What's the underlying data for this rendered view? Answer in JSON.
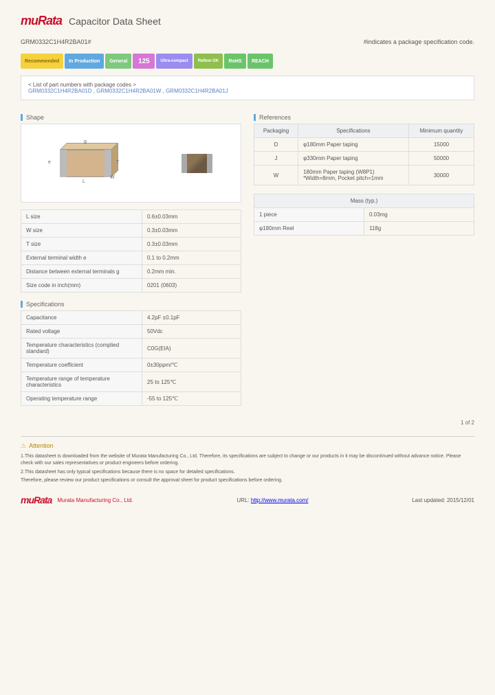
{
  "brand": "muRata",
  "page_title": "Capacitor Data Sheet",
  "part_number": "GRM0332C1H4R2BA01#",
  "note_right": "#indicates a package specification code.",
  "badges": {
    "recommended": "Recommended",
    "production": "In Production",
    "general": "General",
    "temp125": "125",
    "ultra": "Ultra-compact",
    "reflow": "Reflow OK",
    "rohs": "RoHS",
    "reach": "REACH"
  },
  "part_list_title": "< List of part numbers with package codes >",
  "part_list": "GRM0332C1H4R2BA01D , GRM0332C1H4R2BA01W , GRM0332C1H4R2BA01J",
  "sections": {
    "shape": "Shape",
    "references": "References",
    "specifications": "Specifications",
    "mass": "Mass (typ.)"
  },
  "shape_table": [
    {
      "label": "L size",
      "value": "0.6±0.03mm"
    },
    {
      "label": "W size",
      "value": "0.3±0.03mm"
    },
    {
      "label": "T size",
      "value": "0.3±0.03mm"
    },
    {
      "label": "External terminal width e",
      "value": "0.1 to 0.2mm"
    },
    {
      "label": "Distance between external terminals g",
      "value": "0.2mm min."
    },
    {
      "label": "Size code in inch(mm)",
      "value": "0201 (0603)"
    }
  ],
  "ref_headers": {
    "pkg": "Packaging",
    "spec": "Specifications",
    "min": "Minimum quantity"
  },
  "ref_table": [
    {
      "pkg": "D",
      "spec": "φ180mm Paper taping",
      "min": "15000"
    },
    {
      "pkg": "J",
      "spec": "φ330mm Paper taping",
      "min": "50000"
    },
    {
      "pkg": "W",
      "spec": "180mm Paper taping (W8P1)\n*Width=8mm, Pocket pitch=1mm",
      "min": "30000"
    }
  ],
  "mass_table": [
    {
      "label": "1 piece",
      "value": "0.03mg"
    },
    {
      "label": "φ180mm Reel",
      "value": "118g"
    }
  ],
  "spec_table": [
    {
      "label": "Capacitance",
      "value": "4.2pF ±0.1pF"
    },
    {
      "label": "Rated voltage",
      "value": "50Vdc"
    },
    {
      "label": "Temperature characteristics (complied standard)",
      "value": "C0G(EIA)"
    },
    {
      "label": "Temperature coefficient",
      "value": "0±30ppm/℃"
    },
    {
      "label": "Temperature range of temperature characteristics",
      "value": "25 to 125℃"
    },
    {
      "label": "Operating temperature range",
      "value": "-55 to 125℃"
    }
  ],
  "page_num": "1 of 2",
  "attention_title": "Attention",
  "attention_text1": "1.This datasheet is downloaded from the website of Murata Manufacturing Co., Ltd. Therefore, its specifications are subject to change or our products in it may be discontinued without advance notice. Please check with our sales representatives or product engineers before ordering.",
  "attention_text2": "2.This datasheet has only typical specifications because there is no space for detailed specifications.",
  "attention_text3": "Therefore, please review our product specifications or consult the approval sheet for product specifications before ordering.",
  "footer_company": "Murata Manufacturing Co., Ltd.",
  "footer_url_label": "URL:",
  "footer_url": "http://www.murata.com/",
  "footer_updated": "Last updated: 2015/12/01"
}
